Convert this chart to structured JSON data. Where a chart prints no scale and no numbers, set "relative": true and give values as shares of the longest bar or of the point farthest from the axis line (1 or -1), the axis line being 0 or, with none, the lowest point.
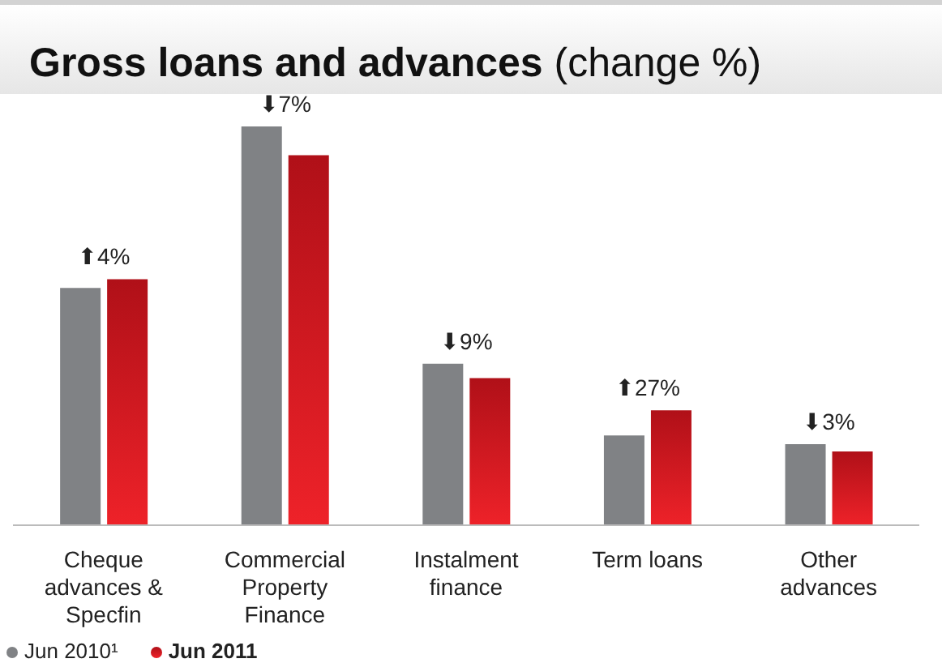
{
  "chart_data": {
    "type": "bar",
    "title": "Gross loans and advances",
    "subtitle": "(change %)",
    "relative": true,
    "categories": [
      "Cheque advances & Specfin",
      "Commercial Property Finance",
      "Instalment finance",
      "Term loans",
      "Other advances"
    ],
    "series": [
      {
        "name": "Jun 2010¹",
        "color": "#808285",
        "values": [
          0.595,
          1,
          0.405,
          0.225,
          0.203
        ]
      },
      {
        "name": "Jun 2011",
        "color": "#b01018",
        "values": [
          0.617,
          0.928,
          0.369,
          0.288,
          0.185
        ]
      }
    ],
    "annotations": [
      "⬆4%",
      "⬇7%",
      "⬇9%",
      "⬆27%",
      "⬇3%"
    ],
    "legend": "bottom left",
    "grid": false
  }
}
